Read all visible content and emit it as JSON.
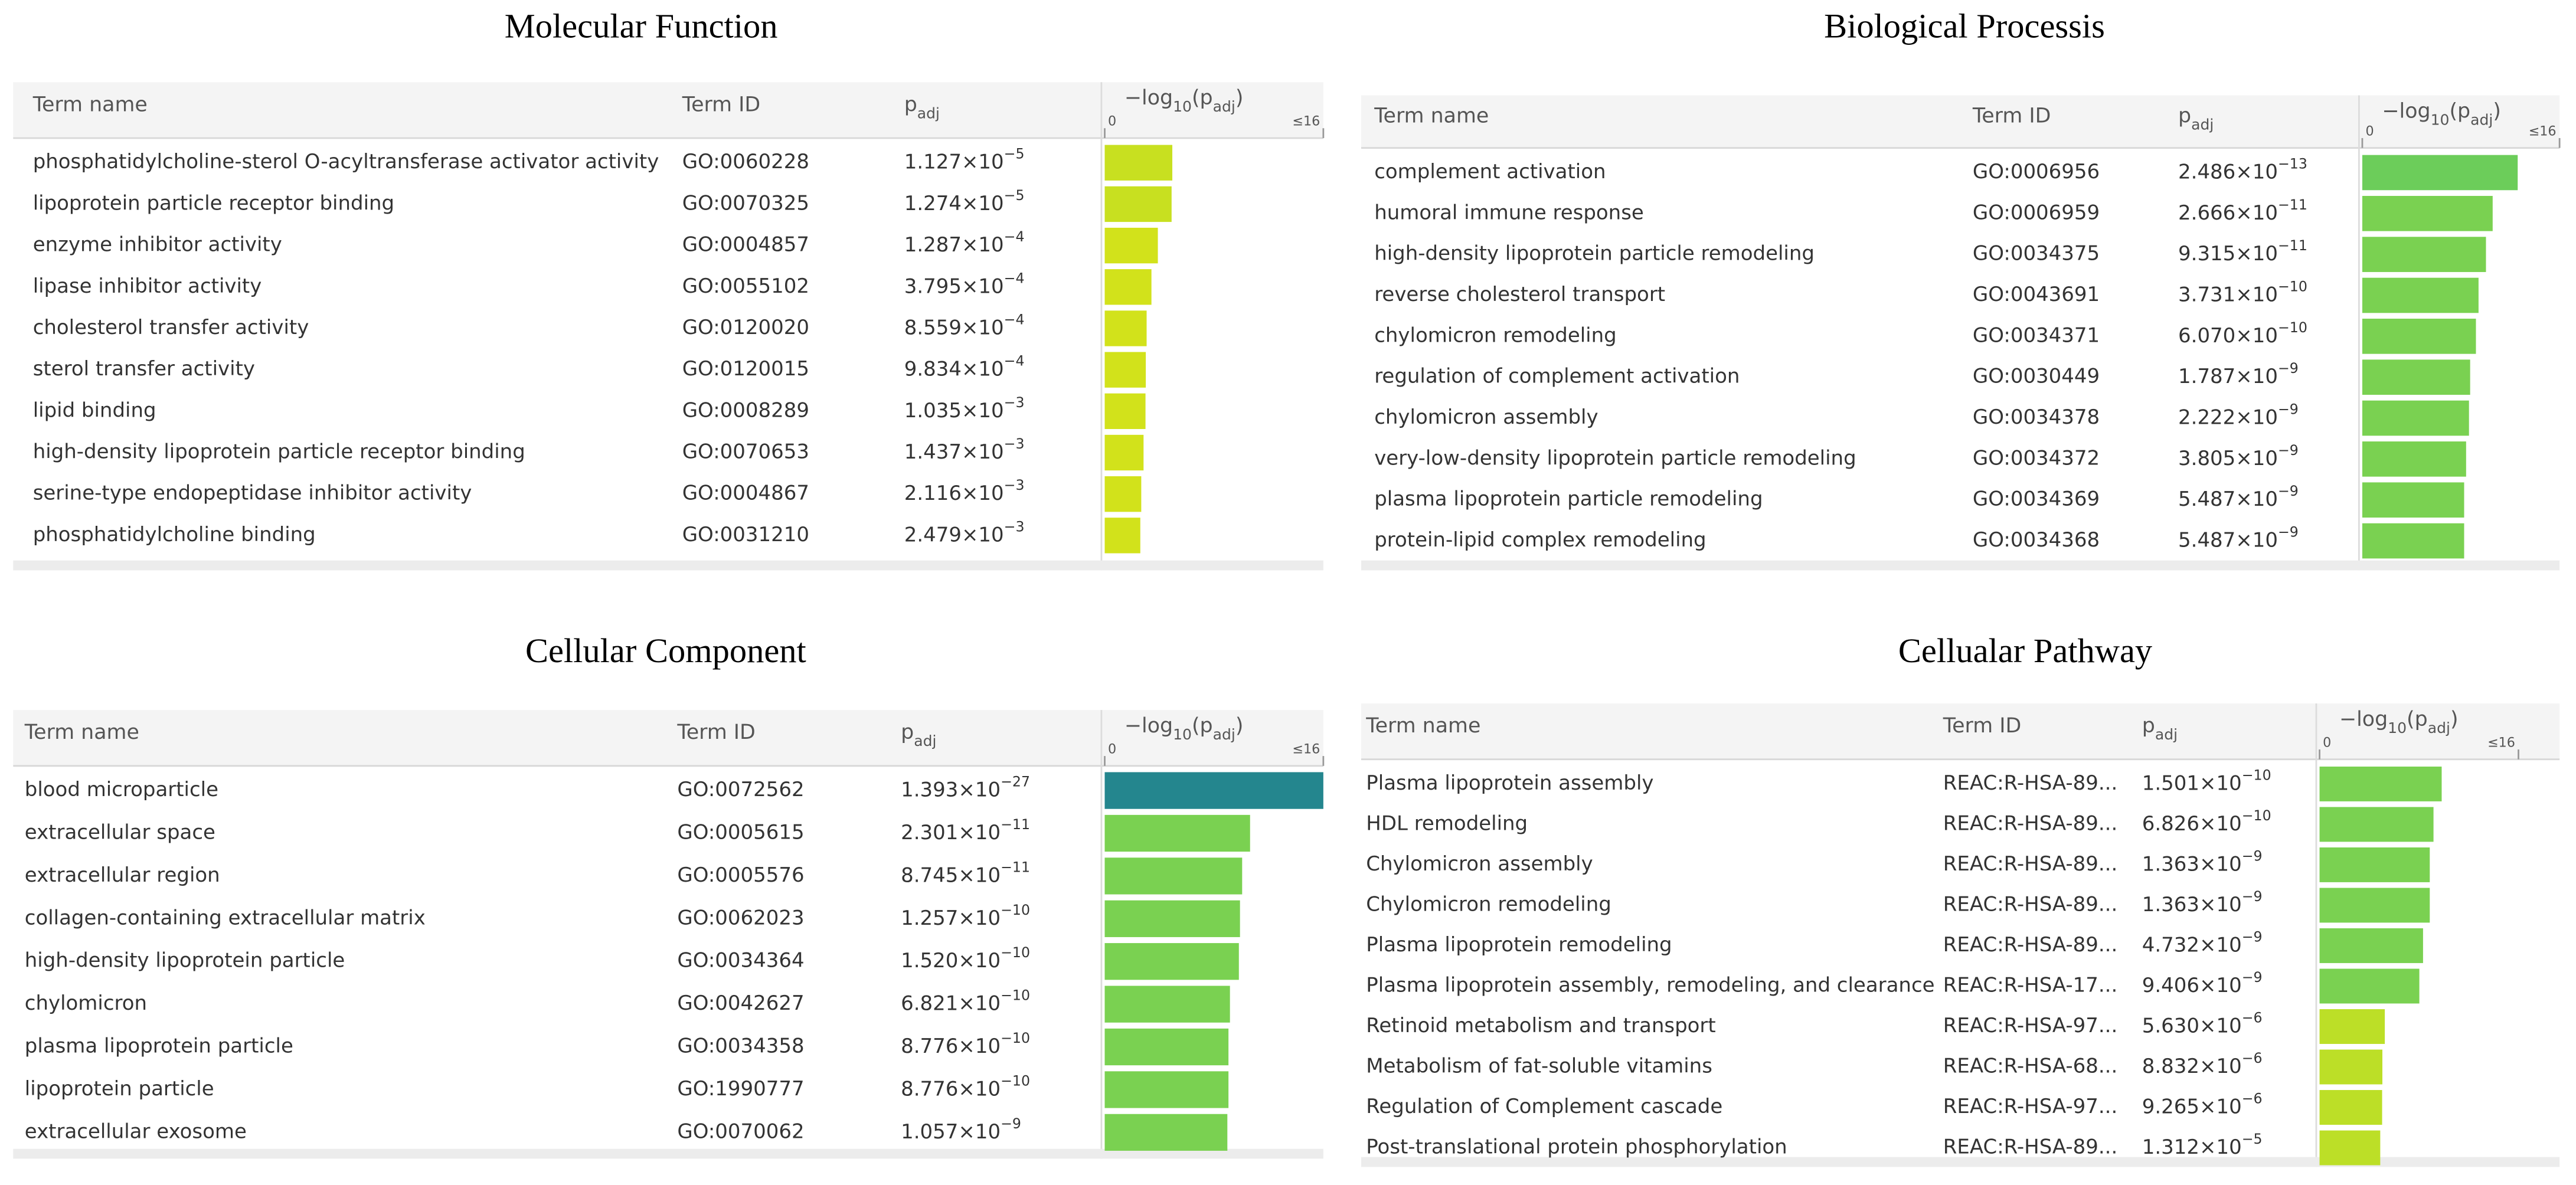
{
  "panels": [
    {
      "title": "Molecular Function",
      "header": {
        "name": "Term name",
        "id": "Term ID",
        "padj": [
          "p",
          "adj"
        ],
        "axis_label": [
          "−log",
          "10",
          "(p",
          "adj",
          ")"
        ]
      },
      "xlim": [
        0,
        16
      ],
      "xticks": [
        0,
        {
          "value": 16,
          "label": "≤16"
        }
      ],
      "rows": [
        {
          "name": "phosphatidylcholine-sterol O-acyltransferase activator activity",
          "id": "GO:0060228",
          "padj": 1.127e-05,
          "padj_label": [
            "1.127×10",
            "−5"
          ],
          "color": "#c8e020"
        },
        {
          "name": "lipoprotein particle receptor binding",
          "id": "GO:0070325",
          "padj": 1.274e-05,
          "padj_label": [
            "1.274×10",
            "−5"
          ],
          "color": "#c8e020"
        },
        {
          "name": "enzyme inhibitor activity",
          "id": "GO:0004857",
          "padj": 0.0001287,
          "padj_label": [
            "1.287×10",
            "−4"
          ],
          "color": "#d2e21b"
        },
        {
          "name": "lipase inhibitor activity",
          "id": "GO:0055102",
          "padj": 0.0003795,
          "padj_label": [
            "3.795×10",
            "−4"
          ],
          "color": "#d2e21b"
        },
        {
          "name": "cholesterol transfer activity",
          "id": "GO:0120020",
          "padj": 0.0008559,
          "padj_label": [
            "8.559×10",
            "−4"
          ],
          "color": "#d2e21b"
        },
        {
          "name": "sterol transfer activity",
          "id": "GO:0120015",
          "padj": 0.0009834,
          "padj_label": [
            "9.834×10",
            "−4"
          ],
          "color": "#d2e21b"
        },
        {
          "name": "lipid binding",
          "id": "GO:0008289",
          "padj": 0.001035,
          "padj_label": [
            "1.035×10",
            "−3"
          ],
          "color": "#d2e21b"
        },
        {
          "name": "high-density lipoprotein particle receptor binding",
          "id": "GO:0070653",
          "padj": 0.001437,
          "padj_label": [
            "1.437×10",
            "−3"
          ],
          "color": "#d2e21b"
        },
        {
          "name": "serine-type endopeptidase inhibitor activity",
          "id": "GO:0004867",
          "padj": 0.002116,
          "padj_label": [
            "2.116×10",
            "−3"
          ],
          "color": "#d2e21b"
        },
        {
          "name": "phosphatidylcholine binding",
          "id": "GO:0031210",
          "padj": 0.002479,
          "padj_label": [
            "2.479×10",
            "−3"
          ],
          "color": "#d2e21b"
        }
      ]
    },
    {
      "title": "Biological Processis",
      "header": {
        "name": "Term name",
        "id": "Term ID",
        "padj": [
          "p",
          "adj"
        ],
        "axis_label": [
          "−log",
          "10",
          "(p",
          "adj",
          ")"
        ]
      },
      "xlim": [
        0,
        16
      ],
      "xticks": [
        0,
        {
          "value": 16,
          "label": "≤16"
        }
      ],
      "rows": [
        {
          "name": "complement activation",
          "id": "GO:0006956",
          "padj": 2.486e-13,
          "padj_label": [
            "2.486×10",
            "−13"
          ],
          "color": "#6ccd5a"
        },
        {
          "name": "humoral immune response",
          "id": "GO:0006959",
          "padj": 2.666e-11,
          "padj_label": [
            "2.666×10",
            "−11"
          ],
          "color": "#7ad151"
        },
        {
          "name": "high-density lipoprotein particle remodeling",
          "id": "GO:0034375",
          "padj": 9.315e-11,
          "padj_label": [
            "9.315×10",
            "−11"
          ],
          "color": "#7ad151"
        },
        {
          "name": "reverse cholesterol transport",
          "id": "GO:0043691",
          "padj": 3.731e-10,
          "padj_label": [
            "3.731×10",
            "−10"
          ],
          "color": "#7ad151"
        },
        {
          "name": "chylomicron remodeling",
          "id": "GO:0034371",
          "padj": 6.07e-10,
          "padj_label": [
            "6.070×10",
            "−10"
          ],
          "color": "#7ad151"
        },
        {
          "name": "regulation of complement activation",
          "id": "GO:0030449",
          "padj": 1.787e-09,
          "padj_label": [
            "1.787×10",
            "−9"
          ],
          "color": "#7ad151"
        },
        {
          "name": "chylomicron assembly",
          "id": "GO:0034378",
          "padj": 2.222e-09,
          "padj_label": [
            "2.222×10",
            "−9"
          ],
          "color": "#7ad151"
        },
        {
          "name": "very-low-density lipoprotein particle remodeling",
          "id": "GO:0034372",
          "padj": 3.805e-09,
          "padj_label": [
            "3.805×10",
            "−9"
          ],
          "color": "#7ad151"
        },
        {
          "name": "plasma lipoprotein particle remodeling",
          "id": "GO:0034369",
          "padj": 5.487e-09,
          "padj_label": [
            "5.487×10",
            "−9"
          ],
          "color": "#7ad151"
        },
        {
          "name": "protein-lipid complex remodeling",
          "id": "GO:0034368",
          "padj": 5.487e-09,
          "padj_label": [
            "5.487×10",
            "−9"
          ],
          "color": "#7ad151"
        }
      ]
    },
    {
      "title": "Cellular Component",
      "header": {
        "name": "Term name",
        "id": "Term ID",
        "padj": [
          "p",
          "adj"
        ],
        "axis_label": [
          "−log",
          "10",
          "(p",
          "adj",
          ")"
        ]
      },
      "xlim": [
        0,
        16
      ],
      "xticks": [
        0,
        {
          "value": 16,
          "label": "≤16"
        }
      ],
      "rows": [
        {
          "name": "blood microparticle",
          "id": "GO:0072562",
          "padj": 1.393e-27,
          "padj_label": [
            "1.393×10",
            "−27"
          ],
          "color": "#24868e"
        },
        {
          "name": "extracellular space",
          "id": "GO:0005615",
          "padj": 2.301e-11,
          "padj_label": [
            "2.301×10",
            "−11"
          ],
          "color": "#7ad151"
        },
        {
          "name": "extracellular region",
          "id": "GO:0005576",
          "padj": 8.745e-11,
          "padj_label": [
            "8.745×10",
            "−11"
          ],
          "color": "#7ad151"
        },
        {
          "name": "collagen-containing extracellular matrix",
          "id": "GO:0062023",
          "padj": 1.257e-10,
          "padj_label": [
            "1.257×10",
            "−10"
          ],
          "color": "#7ad151"
        },
        {
          "name": "high-density lipoprotein particle",
          "id": "GO:0034364",
          "padj": 1.52e-10,
          "padj_label": [
            "1.520×10",
            "−10"
          ],
          "color": "#7ad151"
        },
        {
          "name": "chylomicron",
          "id": "GO:0042627",
          "padj": 6.821e-10,
          "padj_label": [
            "6.821×10",
            "−10"
          ],
          "color": "#7ad151"
        },
        {
          "name": "plasma lipoprotein particle",
          "id": "GO:0034358",
          "padj": 8.776e-10,
          "padj_label": [
            "8.776×10",
            "−10"
          ],
          "color": "#7ad151"
        },
        {
          "name": "lipoprotein particle",
          "id": "GO:1990777",
          "padj": 8.776e-10,
          "padj_label": [
            "8.776×10",
            "−10"
          ],
          "color": "#7ad151"
        },
        {
          "name": "extracellular exosome",
          "id": "GO:0070062",
          "padj": 1.057e-09,
          "padj_label": [
            "1.057×10",
            "−9"
          ],
          "color": "#7ad151"
        }
      ]
    },
    {
      "title": "Cellualar Pathway",
      "header": {
        "name": "Term name",
        "id": "Term ID",
        "padj": [
          "p",
          "adj"
        ],
        "axis_label": [
          "−log",
          "10",
          "(p",
          "adj",
          ")"
        ]
      },
      "xlim": [
        0,
        16
      ],
      "xticks": [
        0,
        {
          "value": 16,
          "label": "≤16"
        }
      ],
      "rows": [
        {
          "name": "Plasma lipoprotein assembly",
          "id": "REAC:R-HSA-89...",
          "padj": 1.501e-10,
          "padj_label": [
            "1.501×10",
            "−10"
          ],
          "color": "#7ad151"
        },
        {
          "name": "HDL remodeling",
          "id": "REAC:R-HSA-89...",
          "padj": 6.826e-10,
          "padj_label": [
            "6.826×10",
            "−10"
          ],
          "color": "#7ad151"
        },
        {
          "name": "Chylomicron assembly",
          "id": "REAC:R-HSA-89...",
          "padj": 1.363e-09,
          "padj_label": [
            "1.363×10",
            "−9"
          ],
          "color": "#7ad151"
        },
        {
          "name": "Chylomicron remodeling",
          "id": "REAC:R-HSA-89...",
          "padj": 1.363e-09,
          "padj_label": [
            "1.363×10",
            "−9"
          ],
          "color": "#7ad151"
        },
        {
          "name": "Plasma lipoprotein remodeling",
          "id": "REAC:R-HSA-89...",
          "padj": 4.732e-09,
          "padj_label": [
            "4.732×10",
            "−9"
          ],
          "color": "#7ad151"
        },
        {
          "name": "Plasma lipoprotein assembly, remodeling, and clearance",
          "id": "REAC:R-HSA-17...",
          "padj": 9.406e-09,
          "padj_label": [
            "9.406×10",
            "−9"
          ],
          "color": "#7ad151"
        },
        {
          "name": "Retinoid metabolism and transport",
          "id": "REAC:R-HSA-97...",
          "padj": 5.63e-06,
          "padj_label": [
            "5.630×10",
            "−6"
          ],
          "color": "#bcdf27"
        },
        {
          "name": "Metabolism of fat-soluble vitamins",
          "id": "REAC:R-HSA-68...",
          "padj": 8.832e-06,
          "padj_label": [
            "8.832×10",
            "−6"
          ],
          "color": "#bcdf27"
        },
        {
          "name": "Regulation of Complement cascade",
          "id": "REAC:R-HSA-97...",
          "padj": 9.265e-06,
          "padj_label": [
            "9.265×10",
            "−6"
          ],
          "color": "#bcdf27"
        },
        {
          "name": "Post-translational protein phosphorylation",
          "id": "REAC:R-HSA-89...",
          "padj": 1.312e-05,
          "padj_label": [
            "1.312×10",
            "−5"
          ],
          "color": "#bcdf27"
        }
      ]
    }
  ]
}
